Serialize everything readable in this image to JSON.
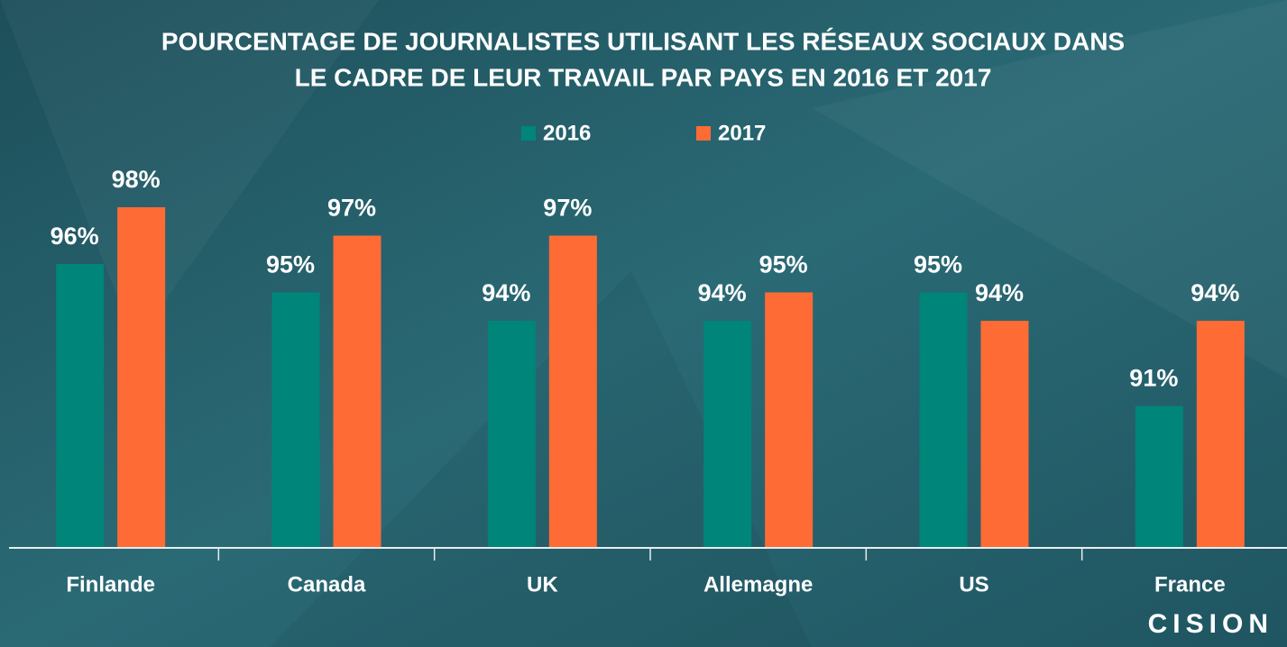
{
  "chart_data": {
    "type": "bar",
    "title": [
      "POURCENTAGE DE JOURNALISTES UTILISANT LES RÉSEAUX SOCIAUX DANS",
      "LE CADRE DE LEUR TRAVAIL PAR PAYS EN 2016 ET 2017"
    ],
    "categories": [
      "Finlande",
      "Canada",
      "UK",
      "Allemagne",
      "US",
      "France"
    ],
    "series": [
      {
        "name": "2016",
        "color": "#00857a",
        "values": [
          96,
          95,
          94,
          94,
          95,
          91
        ],
        "value_labels": [
          "96%",
          "95%",
          "94%",
          "94%",
          "95%",
          "91%"
        ]
      },
      {
        "name": "2017",
        "color": "#ff6b35",
        "values": [
          98,
          97,
          97,
          95,
          94,
          94
        ],
        "value_labels": [
          "98%",
          "97%",
          "97%",
          "95%",
          "94%",
          "94%"
        ]
      }
    ],
    "ylim": [
      86,
      100
    ],
    "logo": "CISION"
  }
}
